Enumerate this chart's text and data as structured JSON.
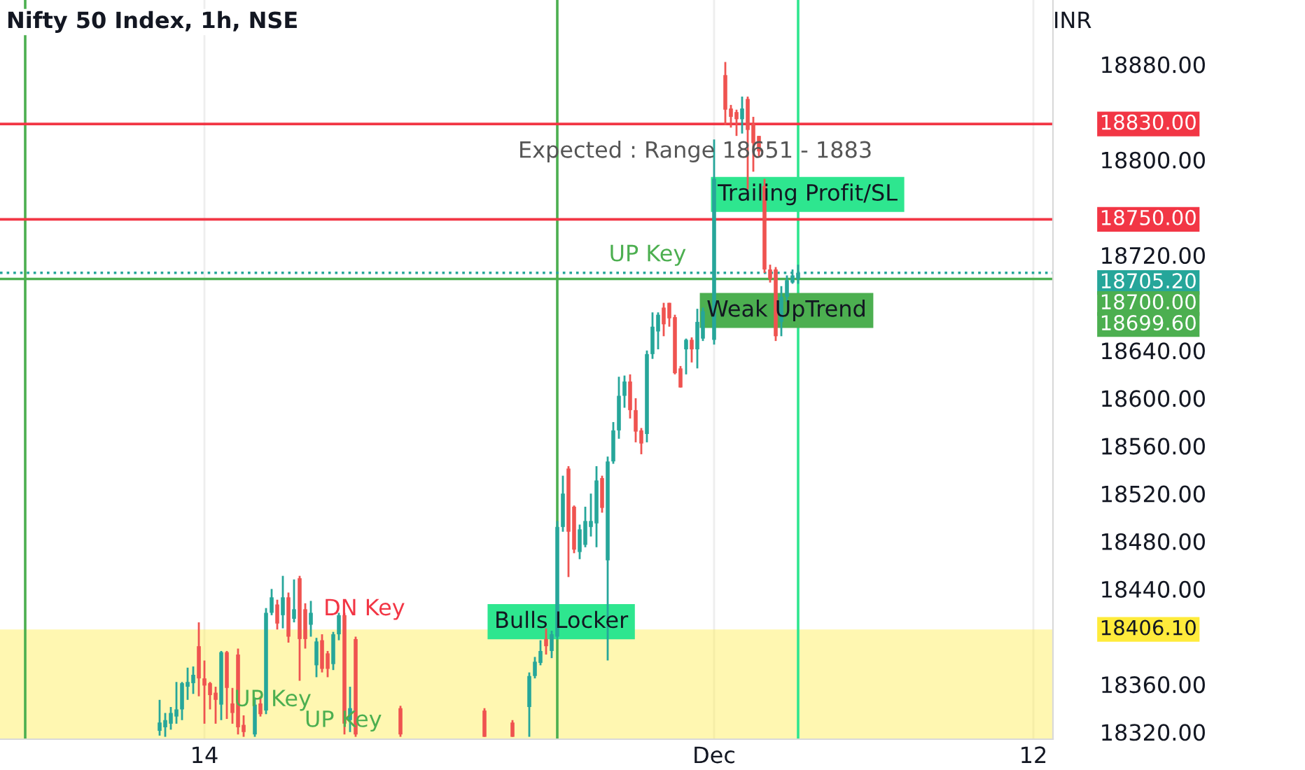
{
  "chart_data": {
    "type": "candlestick",
    "title": "Nifty 50 Index, 1h, NSE",
    "ylabel": "INR",
    "categories": [
      null,
      null,
      null,
      null,
      null,
      null,
      null,
      null,
      null,
      null,
      null,
      null,
      null,
      null,
      null,
      null,
      null,
      null,
      null,
      null,
      null,
      null,
      null,
      null,
      null,
      null,
      null,
      null,
      null,
      null,
      null,
      null,
      null,
      null,
      null,
      null,
      "14",
      null,
      null,
      null,
      null,
      null,
      null,
      null,
      null,
      null,
      null,
      null,
      null,
      null,
      null,
      null,
      null,
      null,
      null,
      null,
      null,
      null,
      null,
      null,
      null,
      null,
      null,
      null,
      null,
      null,
      null,
      null,
      null,
      null,
      null,
      null,
      null,
      null,
      null,
      null,
      null,
      null,
      null,
      null,
      null,
      null,
      null,
      null,
      null,
      null,
      null,
      null,
      null,
      null,
      null,
      null,
      null,
      null,
      null,
      null,
      null,
      null,
      null,
      null,
      null,
      null,
      null,
      null,
      null,
      null,
      null,
      null,
      null,
      null,
      null,
      null,
      null,
      null,
      null,
      null,
      null,
      null,
      null,
      null,
      null,
      null,
      null,
      null,
      null,
      null,
      null,
      "Dec",
      null,
      null,
      null,
      null,
      null,
      null,
      null,
      null,
      null,
      null,
      null,
      null,
      null,
      null,
      null,
      null,
      null,
      null,
      null,
      null,
      null,
      null,
      null,
      null,
      null,
      null,
      null,
      null,
      null,
      null,
      null,
      null,
      null,
      null,
      null,
      null,
      null,
      null,
      null,
      null,
      null,
      null,
      null,
      null,
      null,
      null,
      null,
      null,
      null,
      null,
      null,
      null,
      null,
      null,
      null,
      null,
      "12",
      null,
      null,
      null
    ],
    "ohlc": [
      null,
      null,
      null,
      null,
      null,
      null,
      null,
      null,
      null,
      null,
      null,
      null,
      null,
      null,
      null,
      null,
      null,
      null,
      null,
      null,
      null,
      null,
      null,
      null,
      null,
      null,
      null,
      null,
      [
        18321,
        18347,
        18317,
        18328
      ],
      [
        18324,
        18336,
        18316,
        18330
      ],
      [
        18327,
        18341,
        18322,
        18336
      ],
      [
        18333,
        18362,
        18327,
        18339
      ],
      [
        18339,
        18362,
        18330,
        18361
      ],
      [
        18358,
        18374,
        18347,
        18362
      ],
      [
        18361,
        18375,
        18352,
        18368
      ],
      [
        18392,
        18412,
        18350,
        18365
      ],
      [
        18365,
        18380,
        18327,
        18359
      ],
      [
        18361,
        18362,
        18339,
        18351
      ],
      [
        18353,
        18358,
        18327,
        18347
      ],
      [
        18343,
        18388,
        18330,
        18387
      ],
      [
        18387,
        18388,
        18331,
        18357
      ],
      [
        18344,
        18357,
        18327,
        18336
      ],
      [
        18385,
        18390,
        18318,
        18324
      ],
      [
        18326,
        18334,
        18316,
        18320
      ],
      null,
      [
        18318,
        18349,
        18316,
        18343
      ],
      [
        18344,
        18350,
        18333,
        18335
      ],
      [
        18338,
        18424,
        18335,
        18420
      ],
      [
        18420,
        18440,
        18418,
        18433
      ],
      [
        18427,
        18431,
        18406,
        18411
      ],
      [
        18418,
        18451,
        18407,
        18433
      ],
      [
        18433,
        18437,
        18395,
        18400
      ],
      [
        18415,
        18448,
        18412,
        18423
      ],
      [
        18449,
        18451,
        18363,
        18398
      ],
      [
        18423,
        18428,
        18390,
        18398
      ],
      [
        18410,
        18430,
        18400,
        18420
      ],
      [
        18376,
        18399,
        18366,
        18396
      ],
      [
        18397,
        18402,
        18370,
        18373
      ],
      [
        18386,
        18388,
        18366,
        18373
      ],
      [
        18377,
        18404,
        18372,
        18402
      ],
      [
        18402,
        18420,
        18397,
        18418
      ],
      [
        18418,
        18420,
        18318,
        18327
      ],
      [
        18330,
        18358,
        18320,
        18340
      ],
      [
        18398,
        18400,
        18316,
        18318
      ],
      null,
      null,
      null,
      null,
      null,
      null,
      null,
      [
        18340,
        18342,
        18316,
        18318
      ],
      null,
      null,
      null,
      null,
      null,
      null,
      null,
      null,
      null,
      null,
      null,
      null,
      null,
      null,
      [
        18338,
        18340,
        18316,
        18316
      ],
      null,
      null,
      null,
      null,
      [
        18328,
        18330,
        18316,
        18316
      ],
      null,
      null,
      [
        18341,
        18370,
        18316,
        18367
      ],
      [
        18367,
        18383,
        18365,
        18379
      ],
      [
        18378,
        18397,
        18376,
        18388
      ],
      [
        18398,
        18407,
        18385,
        18392
      ],
      [
        18388,
        18405,
        18382,
        18402
      ],
      [
        18400,
        18497,
        18398,
        18492
      ],
      [
        18492,
        18535,
        18488,
        18520
      ],
      [
        18541,
        18543,
        18450,
        18488
      ],
      [
        18509,
        18510,
        18470,
        18473
      ],
      [
        18471,
        18494,
        18465,
        18490
      ],
      [
        18477,
        18509,
        18475,
        18497
      ],
      [
        18492,
        18520,
        18484,
        18497
      ],
      [
        18495,
        18543,
        18475,
        18531
      ],
      [
        18533,
        18535,
        18504,
        18508
      ],
      [
        18464,
        18551,
        18380,
        18547
      ],
      [
        18547,
        18580,
        18545,
        18573
      ],
      [
        18573,
        18618,
        18566,
        18602
      ],
      [
        18602,
        18619,
        18592,
        18614
      ],
      [
        18614,
        18620,
        18583,
        18590
      ],
      [
        18590,
        18600,
        18563,
        18572
      ],
      [
        18573,
        18575,
        18553,
        18562
      ],
      [
        18570,
        18640,
        18563,
        18637
      ],
      [
        18637,
        18672,
        18633,
        18660
      ],
      [
        18656,
        18672,
        18641,
        18670
      ],
      [
        18676,
        18680,
        18652,
        18662
      ],
      [
        18680,
        18680,
        18660,
        18667
      ],
      [
        18668,
        18670,
        18620,
        18621
      ],
      [
        18625,
        18627,
        18609,
        18609
      ],
      [
        18641,
        18650,
        18620,
        18649
      ],
      [
        18649,
        18651,
        18630,
        18641
      ],
      [
        18641,
        18675,
        18625,
        18664
      ],
      [
        18650,
        18676,
        18648,
        18673
      ],
      null,
      [
        18649,
        18817,
        18645,
        18784
      ],
      null,
      [
        18871,
        18882,
        18829,
        18842
      ],
      [
        18843,
        18846,
        18827,
        18836
      ],
      [
        18840,
        18842,
        18820,
        18834
      ],
      [
        18834,
        18853,
        18822,
        18843
      ],
      [
        18851,
        18853,
        18775,
        18825
      ],
      [
        18830,
        18836,
        18790,
        18814
      ],
      [
        18820,
        18820,
        18803,
        18807
      ],
      [
        18778,
        18784,
        18705,
        18708
      ],
      [
        18708,
        18712,
        18697,
        18700
      ],
      [
        18708,
        18710,
        18648,
        18652
      ],
      [
        18664,
        18694,
        18652,
        18685
      ],
      [
        18685,
        18703,
        18681,
        18699
      ],
      [
        18697,
        18708,
        18696,
        18703
      ],
      [
        18700,
        18712,
        18696,
        18705.2
      ],
      null,
      null,
      null,
      null,
      null,
      null,
      null,
      null,
      null,
      null,
      null,
      null,
      null,
      null,
      null,
      null,
      null,
      null,
      null,
      null,
      null,
      null,
      null,
      null,
      null,
      null,
      null,
      null,
      null,
      null,
      null,
      null,
      null,
      null,
      null,
      null,
      null,
      null,
      null,
      null,
      null,
      null,
      null,
      null,
      null
    ],
    "colors": [
      null,
      null,
      null,
      null,
      null,
      null,
      null,
      null,
      null,
      null,
      null,
      null,
      null,
      null,
      null,
      null,
      null,
      null,
      null,
      null,
      null,
      null,
      null,
      null,
      null,
      null,
      null,
      null,
      "#26a69a",
      "#26a69a",
      "#26a69a",
      "#26a69a",
      "#26a69a",
      "#26a69a",
      "#26a69a",
      "#ef5350",
      "#ef5350",
      "#ef5350",
      "#ef5350",
      "#26a69a",
      "#ef5350",
      "#ef5350",
      "#ef5350",
      "#ef5350",
      null,
      "#26a69a",
      "#ef5350",
      "#26a69a",
      "#26a69a",
      "#ef5350",
      "#26a69a",
      "#ef5350",
      "#26a69a",
      "#ef5350",
      "#ef5350",
      "#26a69a",
      "#26a69a",
      "#ef5350",
      "#ef5350",
      "#26a69a",
      "#26a69a",
      "#ef5350",
      "#26a69a",
      "#ef5350",
      null,
      null,
      null,
      null,
      null,
      null,
      null,
      "#ef5350",
      null,
      null,
      null,
      null,
      null,
      null,
      null,
      null,
      null,
      null,
      null,
      null,
      null,
      null,
      "#ef5350",
      null,
      null,
      null,
      null,
      "#ef5350",
      null,
      null,
      "#26a69a",
      "#26a69a",
      "#26a69a",
      "#ef5350",
      "#26a69a",
      "#26a69a",
      "#26a69a",
      "#ef5350",
      "#ef5350",
      "#26a69a",
      "#26a69a",
      "#26a69a",
      "#26a69a",
      "#ef5350",
      "#26a69a",
      "#26a69a",
      "#26a69a",
      "#26a69a",
      "#ef5350",
      "#ef5350",
      "#ef5350",
      "#26a69a",
      "#26a69a",
      "#26a69a",
      "#ef5350",
      "#ef5350",
      "#ef5350",
      "#ef5350",
      "#26a69a",
      "#ef5350",
      "#26a69a",
      "#26a69a",
      null,
      "#26a69a",
      null,
      "#ef5350",
      "#ef5350",
      "#ef5350",
      "#26a69a",
      "#ef5350",
      "#ef5350",
      "#ef5350",
      "#ef5350",
      "#ef5350",
      "#ef5350",
      "#26a69a",
      "#26a69a",
      "#26a69a",
      "#26a69a",
      null,
      null,
      null,
      null,
      null,
      null,
      null,
      null,
      null,
      null,
      null,
      null,
      null,
      null,
      null,
      null,
      null,
      null,
      null,
      null,
      null,
      null,
      null,
      null,
      null,
      null,
      null,
      null,
      null,
      null,
      null,
      null,
      null,
      null,
      null,
      null,
      null,
      null,
      null,
      null,
      null,
      null,
      null,
      null,
      null
    ],
    "ylim": [
      18314,
      18934
    ],
    "yticks": [
      {
        "value": 18320,
        "label": "18320.00"
      },
      {
        "value": 18360,
        "label": "18360.00"
      },
      {
        "value": 18440,
        "label": "18440.00"
      },
      {
        "value": 18480,
        "label": "18480.00"
      },
      {
        "value": 18520,
        "label": "18520.00"
      },
      {
        "value": 18560,
        "label": "18560.00"
      },
      {
        "value": 18600,
        "label": "18600.00"
      },
      {
        "value": 18640,
        "label": "18640.00"
      },
      {
        "value": 18720,
        "label": "18720.00"
      },
      {
        "value": 18800,
        "label": "18800.00"
      },
      {
        "value": 18880,
        "label": "18880.00"
      }
    ],
    "grid": "x",
    "ref_lines": [
      {
        "axis": "y",
        "value": 18830,
        "label": "18830.00",
        "color": "#f23645",
        "line_style": "solid"
      },
      {
        "axis": "y",
        "value": 18750,
        "label": "18750.00",
        "color": "#f23645",
        "line_style": "solid"
      },
      {
        "axis": "y",
        "value": 18705.2,
        "label": "18705.20",
        "color": "#26a69a",
        "line_style": "dotted"
      },
      {
        "axis": "y",
        "value": 18700,
        "label": "18700.00",
        "color": "#4caf50",
        "line_style": "solid"
      }
    ],
    "bands": [
      {
        "axis": "y",
        "from": 18314,
        "to": 18406.1,
        "label": "18406.10",
        "color": "#ffeb3b"
      }
    ],
    "annotations": [
      "Expected : Range 18651 - 1883",
      "Trailing Profit/SL",
      "Weak UpTrend",
      "Bulls Locker",
      "UP Key",
      "DN Key",
      "UP Key",
      "UP Key",
      "18699.60"
    ]
  }
}
